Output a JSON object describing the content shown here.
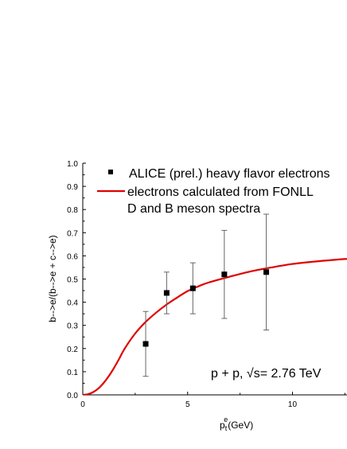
{
  "chart_data": {
    "type": "scatter",
    "ylabel": "b-->e/(b-->e + c-->e)",
    "xlabel_main": "p",
    "xlabel_sub": "t",
    "xlabel_sup": "e",
    "xlabel_unit": "(GeV)",
    "xlim": [
      0,
      12.6
    ],
    "ylim": [
      0,
      1.0
    ],
    "x_ticks": [
      0,
      5,
      10
    ],
    "x_tick_labels": [
      "0",
      "5",
      "10"
    ],
    "y_ticks": [
      0,
      0.1,
      0.2,
      0.3,
      0.4,
      0.5,
      0.6,
      0.7,
      0.8,
      0.9,
      1.0
    ],
    "y_tick_labels": [
      "0.0",
      "0.1",
      "0.2",
      "0.3",
      "0.4",
      "0.5",
      "0.6",
      "0.7",
      "0.8",
      "0.9",
      "1.0"
    ],
    "grid": false,
    "legend_placement": "top",
    "legend": [
      {
        "label": "ALICE (prel.) heavy flavor electrons",
        "marker": "square",
        "color": "#000000"
      },
      {
        "label": "electrons calculated from FONLL",
        "marker": "line",
        "color": "#e00000"
      },
      {
        "label": "D and B meson spectra",
        "marker": "none",
        "color": "#000000"
      }
    ],
    "annotation": "p + p, √s= 2.76 TeV",
    "series": [
      {
        "type": "scatter",
        "color": "#000000",
        "points": [
          {
            "x": 3.0,
            "y": 0.22,
            "ylow": 0.08,
            "yhigh": 0.36
          },
          {
            "x": 4.0,
            "y": 0.44,
            "ylow": 0.35,
            "yhigh": 0.53
          },
          {
            "x": 5.25,
            "y": 0.46,
            "ylow": 0.35,
            "yhigh": 0.57
          },
          {
            "x": 6.75,
            "y": 0.52,
            "ylow": 0.33,
            "yhigh": 0.71
          },
          {
            "x": 8.75,
            "y": 0.53,
            "ylow": 0.28,
            "yhigh": 0.78
          }
        ]
      },
      {
        "type": "line",
        "color": "#e00000",
        "x": [
          0,
          0.25,
          0.5,
          0.75,
          1.0,
          1.25,
          1.5,
          1.75,
          2.0,
          2.5,
          3.0,
          3.5,
          4.0,
          4.5,
          5.0,
          5.5,
          6.0,
          7.0,
          8.0,
          9.0,
          10.0,
          11.0,
          12.0,
          12.6
        ],
        "y": [
          0.0,
          0.003,
          0.012,
          0.028,
          0.052,
          0.082,
          0.118,
          0.158,
          0.2,
          0.265,
          0.315,
          0.355,
          0.39,
          0.42,
          0.448,
          0.468,
          0.485,
          0.51,
          0.533,
          0.55,
          0.565,
          0.575,
          0.583,
          0.587
        ]
      }
    ]
  }
}
